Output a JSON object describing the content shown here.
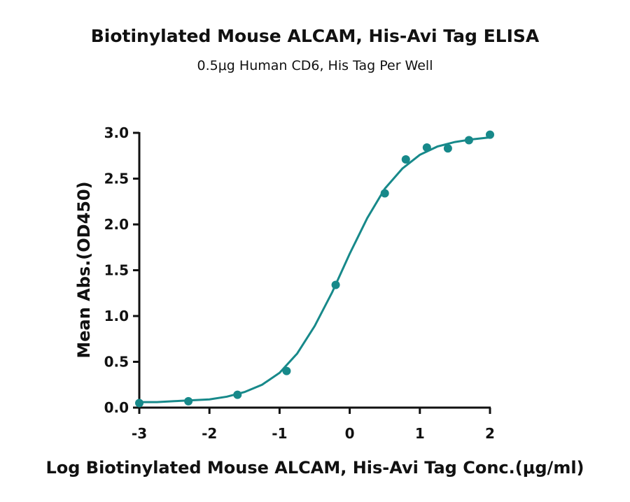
{
  "chart_data": {
    "type": "scatter",
    "title": "Biotinylated Mouse ALCAM, His-Avi Tag ELISA",
    "subtitle": "0.5μg Human CD6, His Tag Per Well",
    "x_label": "Log Biotinylated Mouse ALCAM, His-Avi Tag Conc.(μg/ml)",
    "y_label": "Mean Abs.(OD450)",
    "xlim": [
      -3,
      2
    ],
    "xticks": [
      -3,
      -2,
      -1,
      0,
      1,
      2
    ],
    "ylim": [
      0,
      3
    ],
    "yticks": [
      {
        "value": 0,
        "label": "0.0"
      },
      0.5,
      {
        "value": 1,
        "label": "1.0"
      },
      1.5,
      {
        "value": 2,
        "label": "2.0"
      },
      2.5,
      {
        "value": 3,
        "label": "3.0"
      }
    ],
    "series": [
      {
        "mode": "markers",
        "color": "#17898a",
        "x": [
          -3,
          -2.3,
          -1.6,
          -0.9,
          -0.2,
          0.5,
          0.8,
          1.1,
          1.4,
          1.7,
          2.0
        ],
        "values": [
          0.05,
          0.07,
          0.14,
          0.4,
          1.34,
          2.34,
          2.71,
          2.84,
          2.83,
          2.92,
          2.98
        ]
      },
      {
        "mode": "line",
        "color": "#17898a",
        "x": [
          -3,
          -2.75,
          -2.5,
          -2.25,
          -2,
          -1.75,
          -1.5,
          -1.25,
          -1,
          -0.75,
          -0.5,
          -0.25,
          0,
          0.25,
          0.5,
          0.75,
          1,
          1.25,
          1.5,
          1.75,
          2
        ],
        "values": [
          0.06,
          0.06,
          0.07,
          0.08,
          0.09,
          0.12,
          0.17,
          0.25,
          0.38,
          0.59,
          0.89,
          1.26,
          1.68,
          2.07,
          2.39,
          2.61,
          2.76,
          2.85,
          2.9,
          2.93,
          2.95
        ]
      }
    ]
  }
}
